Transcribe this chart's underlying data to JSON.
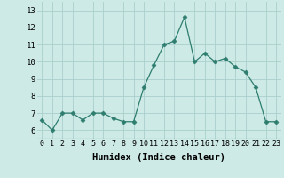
{
  "x": [
    0,
    1,
    2,
    3,
    4,
    5,
    6,
    7,
    8,
    9,
    10,
    11,
    12,
    13,
    14,
    15,
    16,
    17,
    18,
    19,
    20,
    21,
    22,
    23
  ],
  "y": [
    6.6,
    6.0,
    7.0,
    7.0,
    6.6,
    7.0,
    7.0,
    6.7,
    6.5,
    6.5,
    8.5,
    9.8,
    11.0,
    11.2,
    12.6,
    10.0,
    10.5,
    10.0,
    10.2,
    9.7,
    9.4,
    8.5,
    6.5,
    6.5
  ],
  "line_color": "#2e7d6e",
  "marker": "D",
  "marker_size": 2.5,
  "bg_color": "#cdeae7",
  "grid_color": "#aacfcc",
  "xlabel": "Humidex (Indice chaleur)",
  "ylim": [
    5.5,
    13.5
  ],
  "xlim": [
    -0.5,
    23.5
  ],
  "yticks": [
    6,
    7,
    8,
    9,
    10,
    11,
    12,
    13
  ],
  "xticks": [
    0,
    1,
    2,
    3,
    4,
    5,
    6,
    7,
    8,
    9,
    10,
    11,
    12,
    13,
    14,
    15,
    16,
    17,
    18,
    19,
    20,
    21,
    22,
    23
  ],
  "xlabel_fontsize": 7.5,
  "tick_fontsize": 6.0,
  "ytick_fontsize": 6.5
}
